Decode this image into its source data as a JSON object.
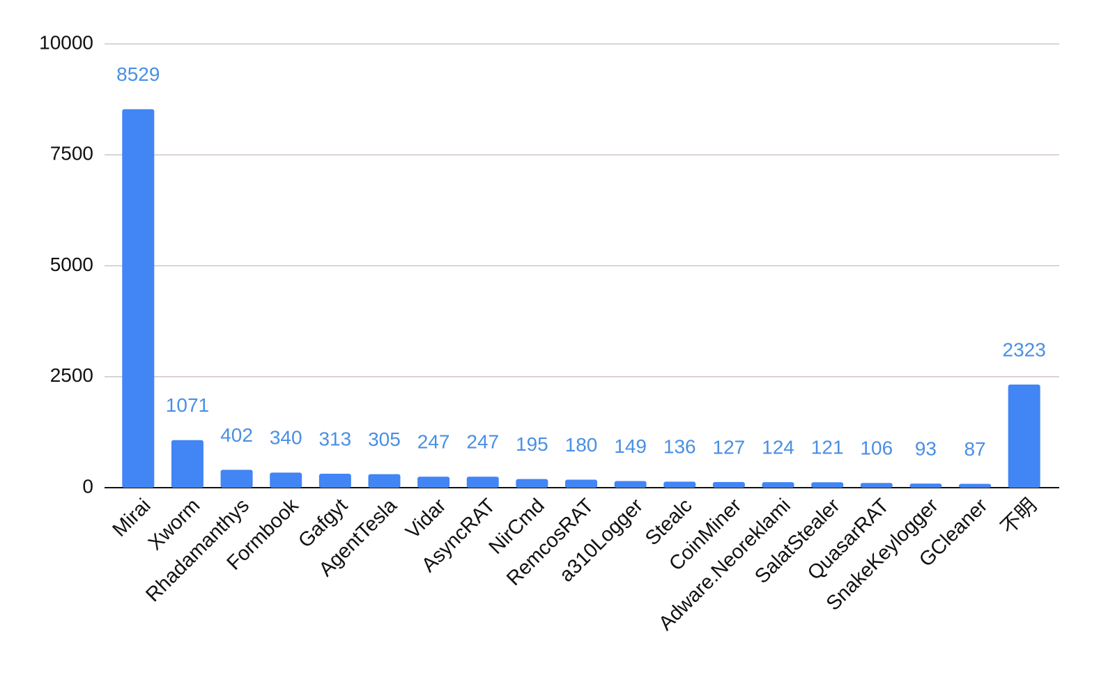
{
  "chart_data": {
    "type": "bar",
    "categories": [
      "Mirai",
      "Xworm",
      "Rhadamanthys",
      "Formbook",
      "Gafgyt",
      "AgentTesla",
      "Vidar",
      "AsyncRAT",
      "NirCmd",
      "RemcosRAT",
      "a310Logger",
      "Stealc",
      "CoinMiner",
      "Adware.Neoreklami",
      "SalatStealer",
      "QuasarRAT",
      "SnakeKeylogger",
      "GCleaner",
      "不明"
    ],
    "values": [
      8529,
      1071,
      402,
      340,
      313,
      305,
      247,
      247,
      195,
      180,
      149,
      136,
      127,
      124,
      121,
      106,
      93,
      87,
      2323
    ],
    "color": "#4285f4",
    "ylim": [
      0,
      10000
    ],
    "yticks": [
      0,
      2500,
      5000,
      7500,
      10000
    ],
    "grid": true
  }
}
